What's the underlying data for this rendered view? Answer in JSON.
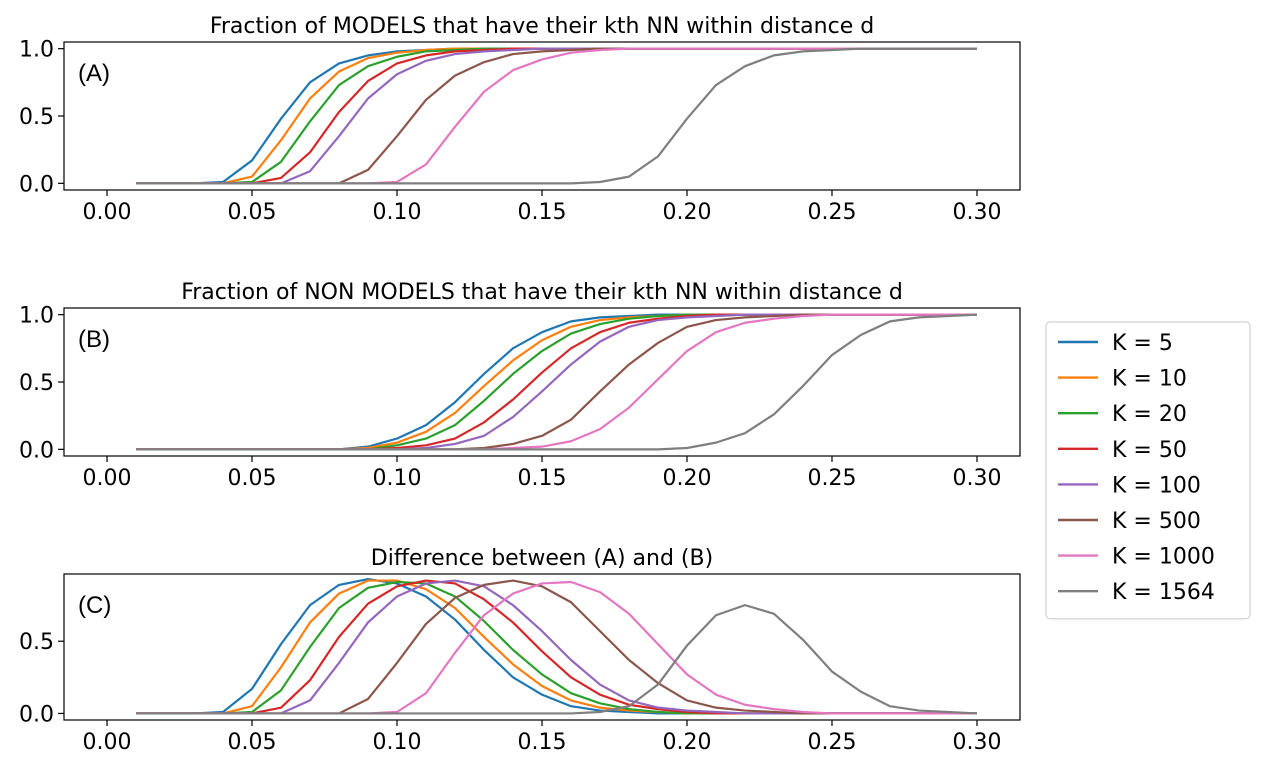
{
  "chart_data": [
    {
      "type": "line",
      "panel_label": "(A)",
      "title": "Fraction of MODELS that have their kth NN within distance d",
      "xlim": [
        0.0,
        0.3
      ],
      "ylim": [
        0.0,
        1.0
      ],
      "xticks": [
        "0.00",
        "0.05",
        "0.10",
        "0.15",
        "0.20",
        "0.25",
        "0.30"
      ],
      "yticks": [
        "0.0",
        "0.5",
        "1.0"
      ],
      "x": [
        0.01,
        0.02,
        0.03,
        0.04,
        0.05,
        0.06,
        0.07,
        0.08,
        0.09,
        0.1,
        0.11,
        0.12,
        0.13,
        0.14,
        0.15,
        0.16,
        0.17,
        0.18,
        0.19,
        0.2,
        0.21,
        0.22,
        0.23,
        0.24,
        0.25,
        0.26,
        0.27,
        0.28,
        0.29,
        0.3
      ],
      "series": [
        {
          "name": "K = 5",
          "values": [
            0,
            0,
            0,
            0.01,
            0.17,
            0.48,
            0.75,
            0.89,
            0.95,
            0.98,
            0.99,
            1,
            1,
            1,
            1,
            1,
            1,
            1,
            1,
            1,
            1,
            1,
            1,
            1,
            1,
            1,
            1,
            1,
            1,
            1
          ]
        },
        {
          "name": "K = 10",
          "values": [
            0,
            0,
            0,
            0,
            0.05,
            0.32,
            0.63,
            0.83,
            0.93,
            0.97,
            0.99,
            1,
            1,
            1,
            1,
            1,
            1,
            1,
            1,
            1,
            1,
            1,
            1,
            1,
            1,
            1,
            1,
            1,
            1,
            1
          ]
        },
        {
          "name": "K = 20",
          "values": [
            0,
            0,
            0,
            0,
            0.01,
            0.16,
            0.46,
            0.73,
            0.87,
            0.94,
            0.98,
            0.99,
            1,
            1,
            1,
            1,
            1,
            1,
            1,
            1,
            1,
            1,
            1,
            1,
            1,
            1,
            1,
            1,
            1,
            1
          ]
        },
        {
          "name": "K = 50",
          "values": [
            0,
            0,
            0,
            0,
            0,
            0.04,
            0.23,
            0.53,
            0.76,
            0.89,
            0.95,
            0.98,
            0.99,
            1,
            1,
            1,
            1,
            1,
            1,
            1,
            1,
            1,
            1,
            1,
            1,
            1,
            1,
            1,
            1,
            1
          ]
        },
        {
          "name": "K = 100",
          "values": [
            0,
            0,
            0,
            0,
            0,
            0,
            0.09,
            0.35,
            0.63,
            0.81,
            0.91,
            0.96,
            0.98,
            0.99,
            1,
            1,
            1,
            1,
            1,
            1,
            1,
            1,
            1,
            1,
            1,
            1,
            1,
            1,
            1,
            1
          ]
        },
        {
          "name": "K = 500",
          "values": [
            0,
            0,
            0,
            0,
            0,
            0,
            0,
            0,
            0.1,
            0.35,
            0.62,
            0.8,
            0.9,
            0.96,
            0.98,
            0.99,
            1,
            1,
            1,
            1,
            1,
            1,
            1,
            1,
            1,
            1,
            1,
            1,
            1,
            1
          ]
        },
        {
          "name": "K = 1000",
          "values": [
            0,
            0,
            0,
            0,
            0,
            0,
            0,
            0,
            0,
            0.01,
            0.14,
            0.42,
            0.68,
            0.84,
            0.92,
            0.97,
            0.99,
            1,
            1,
            1,
            1,
            1,
            1,
            1,
            1,
            1,
            1,
            1,
            1,
            1
          ]
        },
        {
          "name": "K = 1564",
          "values": [
            0,
            0,
            0,
            0,
            0,
            0,
            0,
            0,
            0,
            0,
            0,
            0,
            0,
            0,
            0,
            0,
            0.01,
            0.05,
            0.2,
            0.48,
            0.73,
            0.87,
            0.95,
            0.98,
            0.99,
            1,
            1,
            1,
            1,
            1
          ]
        }
      ]
    },
    {
      "type": "line",
      "panel_label": "(B)",
      "title": "Fraction of NON MODELS that have their kth NN within distance d",
      "xlim": [
        0.0,
        0.3
      ],
      "ylim": [
        0.0,
        1.0
      ],
      "xticks": [
        "0.00",
        "0.05",
        "0.10",
        "0.15",
        "0.20",
        "0.25",
        "0.30"
      ],
      "yticks": [
        "0.0",
        "0.5",
        "1.0"
      ],
      "x": [
        0.01,
        0.02,
        0.03,
        0.04,
        0.05,
        0.06,
        0.07,
        0.08,
        0.09,
        0.1,
        0.11,
        0.12,
        0.13,
        0.14,
        0.15,
        0.16,
        0.17,
        0.18,
        0.19,
        0.2,
        0.21,
        0.22,
        0.23,
        0.24,
        0.25,
        0.26,
        0.27,
        0.28,
        0.29,
        0.3
      ],
      "series": [
        {
          "name": "K = 5",
          "values": [
            0,
            0,
            0,
            0,
            0,
            0,
            0,
            0,
            0.02,
            0.08,
            0.18,
            0.35,
            0.56,
            0.75,
            0.87,
            0.95,
            0.98,
            0.99,
            1,
            1,
            1,
            1,
            1,
            1,
            1,
            1,
            1,
            1,
            1,
            1
          ]
        },
        {
          "name": "K = 10",
          "values": [
            0,
            0,
            0,
            0,
            0,
            0,
            0,
            0,
            0.01,
            0.05,
            0.13,
            0.27,
            0.47,
            0.66,
            0.81,
            0.91,
            0.96,
            0.98,
            0.99,
            1,
            1,
            1,
            1,
            1,
            1,
            1,
            1,
            1,
            1,
            1
          ]
        },
        {
          "name": "K = 20",
          "values": [
            0,
            0,
            0,
            0,
            0,
            0,
            0,
            0,
            0,
            0.03,
            0.08,
            0.18,
            0.36,
            0.56,
            0.73,
            0.86,
            0.93,
            0.97,
            0.99,
            1,
            1,
            1,
            1,
            1,
            1,
            1,
            1,
            1,
            1,
            1
          ]
        },
        {
          "name": "K = 50",
          "values": [
            0,
            0,
            0,
            0,
            0,
            0,
            0,
            0,
            0,
            0.01,
            0.03,
            0.08,
            0.2,
            0.37,
            0.57,
            0.75,
            0.87,
            0.94,
            0.97,
            0.99,
            1,
            1,
            1,
            1,
            1,
            1,
            1,
            1,
            1,
            1
          ]
        },
        {
          "name": "K = 100",
          "values": [
            0,
            0,
            0,
            0,
            0,
            0,
            0,
            0,
            0,
            0,
            0.01,
            0.04,
            0.1,
            0.24,
            0.43,
            0.63,
            0.8,
            0.91,
            0.96,
            0.98,
            0.99,
            1,
            1,
            1,
            1,
            1,
            1,
            1,
            1,
            1
          ]
        },
        {
          "name": "K = 500",
          "values": [
            0,
            0,
            0,
            0,
            0,
            0,
            0,
            0,
            0,
            0,
            0,
            0,
            0.01,
            0.04,
            0.1,
            0.22,
            0.43,
            0.63,
            0.79,
            0.91,
            0.96,
            0.98,
            0.99,
            1,
            1,
            1,
            1,
            1,
            1,
            1
          ]
        },
        {
          "name": "K = 1000",
          "values": [
            0,
            0,
            0,
            0,
            0,
            0,
            0,
            0,
            0,
            0,
            0,
            0,
            0,
            0.01,
            0.02,
            0.06,
            0.15,
            0.31,
            0.52,
            0.73,
            0.87,
            0.94,
            0.97,
            0.99,
            1,
            1,
            1,
            1,
            1,
            1
          ]
        },
        {
          "name": "K = 1564",
          "values": [
            0,
            0,
            0,
            0,
            0,
            0,
            0,
            0,
            0,
            0,
            0,
            0,
            0,
            0,
            0,
            0,
            0,
            0,
            0,
            0.01,
            0.05,
            0.12,
            0.26,
            0.47,
            0.7,
            0.85,
            0.95,
            0.98,
            0.99,
            1
          ]
        }
      ]
    },
    {
      "type": "line",
      "panel_label": "(C)",
      "title": "Difference between (A) and (B)",
      "xlim": [
        0.0,
        0.3
      ],
      "ylim": [
        0.0,
        0.92
      ],
      "xticks": [
        "0.00",
        "0.05",
        "0.10",
        "0.15",
        "0.20",
        "0.25",
        "0.30"
      ],
      "yticks": [
        "0.0",
        "0.5"
      ],
      "x": [
        0.01,
        0.02,
        0.03,
        0.04,
        0.05,
        0.06,
        0.07,
        0.08,
        0.09,
        0.1,
        0.11,
        0.12,
        0.13,
        0.14,
        0.15,
        0.16,
        0.17,
        0.18,
        0.19,
        0.2,
        0.21,
        0.22,
        0.23,
        0.24,
        0.25,
        0.26,
        0.27,
        0.28,
        0.29,
        0.3
      ],
      "series": [
        {
          "name": "K = 5",
          "values": [
            0,
            0,
            0,
            0.01,
            0.17,
            0.48,
            0.75,
            0.89,
            0.93,
            0.9,
            0.81,
            0.65,
            0.44,
            0.25,
            0.13,
            0.05,
            0.02,
            0.01,
            0,
            0,
            0,
            0,
            0,
            0,
            0,
            0,
            0,
            0,
            0,
            0
          ]
        },
        {
          "name": "K = 10",
          "values": [
            0,
            0,
            0,
            0,
            0.05,
            0.32,
            0.63,
            0.83,
            0.92,
            0.92,
            0.86,
            0.73,
            0.53,
            0.34,
            0.19,
            0.09,
            0.04,
            0.02,
            0.01,
            0,
            0,
            0,
            0,
            0,
            0,
            0,
            0,
            0,
            0,
            0
          ]
        },
        {
          "name": "K = 20",
          "values": [
            0,
            0,
            0,
            0,
            0.01,
            0.16,
            0.46,
            0.73,
            0.87,
            0.91,
            0.9,
            0.81,
            0.64,
            0.44,
            0.27,
            0.14,
            0.07,
            0.03,
            0.01,
            0,
            0,
            0,
            0,
            0,
            0,
            0,
            0,
            0,
            0,
            0
          ]
        },
        {
          "name": "K = 50",
          "values": [
            0,
            0,
            0,
            0,
            0,
            0.04,
            0.23,
            0.53,
            0.76,
            0.88,
            0.92,
            0.9,
            0.79,
            0.63,
            0.43,
            0.25,
            0.13,
            0.06,
            0.03,
            0.01,
            0,
            0,
            0,
            0,
            0,
            0,
            0,
            0,
            0,
            0
          ]
        },
        {
          "name": "K = 100",
          "values": [
            0,
            0,
            0,
            0,
            0,
            0,
            0.09,
            0.35,
            0.63,
            0.81,
            0.9,
            0.92,
            0.88,
            0.75,
            0.57,
            0.37,
            0.2,
            0.09,
            0.04,
            0.02,
            0.01,
            0,
            0,
            0,
            0,
            0,
            0,
            0,
            0,
            0
          ]
        },
        {
          "name": "K = 500",
          "values": [
            0,
            0,
            0,
            0,
            0,
            0,
            0,
            0,
            0.1,
            0.35,
            0.62,
            0.8,
            0.89,
            0.92,
            0.88,
            0.77,
            0.57,
            0.37,
            0.21,
            0.09,
            0.04,
            0.02,
            0.01,
            0,
            0,
            0,
            0,
            0,
            0,
            0
          ]
        },
        {
          "name": "K = 1000",
          "values": [
            0,
            0,
            0,
            0,
            0,
            0,
            0,
            0,
            0,
            0.01,
            0.14,
            0.42,
            0.68,
            0.83,
            0.9,
            0.91,
            0.84,
            0.69,
            0.48,
            0.27,
            0.13,
            0.06,
            0.03,
            0.01,
            0,
            0,
            0,
            0,
            0,
            0
          ]
        },
        {
          "name": "K = 1564",
          "values": [
            0,
            0,
            0,
            0,
            0,
            0,
            0,
            0,
            0,
            0,
            0,
            0,
            0,
            0,
            0,
            0,
            0.01,
            0.05,
            0.2,
            0.47,
            0.68,
            0.75,
            0.69,
            0.51,
            0.29,
            0.15,
            0.05,
            0.02,
            0.01,
            0
          ]
        }
      ]
    }
  ],
  "legend": {
    "placement": "right",
    "entries": [
      {
        "label": "K = 5",
        "color": "#1f77b4"
      },
      {
        "label": "K = 10",
        "color": "#ff7f0e"
      },
      {
        "label": "K = 20",
        "color": "#2ca02c"
      },
      {
        "label": "K = 50",
        "color": "#d62728"
      },
      {
        "label": "K = 100",
        "color": "#9467bd"
      },
      {
        "label": "K = 500",
        "color": "#8c564b"
      },
      {
        "label": "K = 1000",
        "color": "#e377c2"
      },
      {
        "label": "K = 1564",
        "color": "#7f7f7f"
      }
    ]
  }
}
